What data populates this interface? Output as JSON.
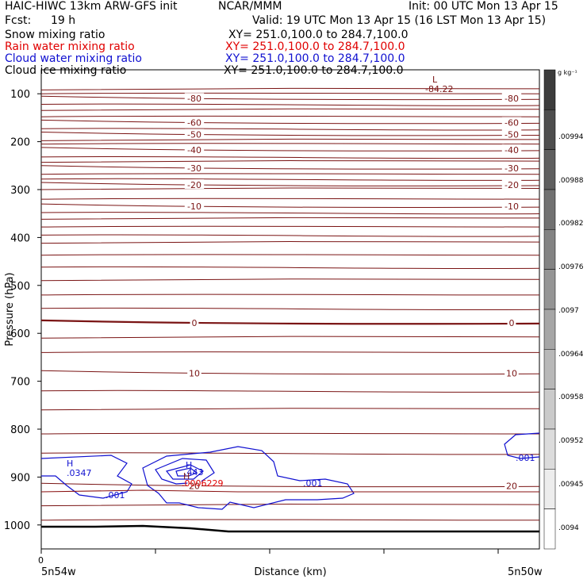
{
  "header": {
    "title_left": "HAIC-HIWC 13km ARW-GFS init",
    "center": "NCAR/MMM",
    "init": "Init: 00 UTC Mon 13 Apr 15",
    "fcst_label": "Fcst:",
    "fcst_value": "19 h",
    "valid": "Valid: 19 UTC Mon 13 Apr 15 (16 LST Mon 13 Apr 15)",
    "fields": [
      {
        "name": "Snow mixing ratio",
        "xy": "XY= 251.0,100.0 to 284.7,100.0",
        "color": "#000000"
      },
      {
        "name": "Rain water mixing ratio",
        "xy": "XY= 251.0,100.0 to 284.7,100.0",
        "color": "#e00000"
      },
      {
        "name": "Cloud water mixing ratio",
        "xy": "XY= 251.0,100.0 to 284.7,100.0",
        "color": "#1010d0"
      },
      {
        "name": "Cloud ice mixing ratio",
        "xy": "XY= 251.0,100.0 to 284.7,100.0",
        "color": "#000000"
      }
    ]
  },
  "chart_data": {
    "type": "contour",
    "ylabel": "Pressure (hPa)",
    "xlabel": "Distance (km)",
    "ylim": [
      1050,
      50
    ],
    "y_ticks": [
      100,
      200,
      300,
      400,
      500,
      600,
      700,
      800,
      900,
      1000
    ],
    "x_tick_label_zero": "0",
    "x_end_labels": [
      "5n54w",
      "5n50w"
    ],
    "temperature_contours": [
      {
        "label": "-80",
        "p": 110
      },
      {
        "label": "-60",
        "p": 160
      },
      {
        "label": "-50",
        "p": 185
      },
      {
        "label": "-40",
        "p": 217
      },
      {
        "label": "-30",
        "p": 255
      },
      {
        "label": "-20",
        "p": 290
      },
      {
        "label": "-10",
        "p": 335
      },
      {
        "label": "0",
        "p": 578
      },
      {
        "label": "10",
        "p": 683
      },
      {
        "label": "20",
        "p": 918
      }
    ],
    "annotations": [
      {
        "text": "L",
        "color": "#7a1414"
      },
      {
        "text": "-84.22",
        "color": "#7a1414"
      },
      {
        "text": "H",
        "color": "#1010d0"
      },
      {
        "text": ".0347",
        "color": "#1010d0"
      },
      {
        "text": ".001",
        "color": "#1010d0"
      },
      {
        "text": "H",
        "color": "#1010d0"
      },
      {
        "text": ".443",
        "color": "#1010d0"
      },
      {
        "text": "H",
        "color": "#7a1414"
      },
      {
        "text": ".0006229",
        "color": "#e00000"
      },
      {
        "text": ".001",
        "color": "#1010d0"
      },
      {
        "text": ".001",
        "color": "#1010d0"
      }
    ],
    "colorbar": {
      "unit": "g kg⁻¹",
      "labels": [
        ".00994",
        ".00988",
        ".00982",
        ".00976",
        ".0097",
        ".00964",
        ".00958",
        ".00952",
        ".00945",
        ".0094"
      ]
    },
    "colors": {
      "temperature": "#7a1414",
      "cloud_water": "#1010d0",
      "rain": "#e00000",
      "terrain": "#000000"
    }
  }
}
